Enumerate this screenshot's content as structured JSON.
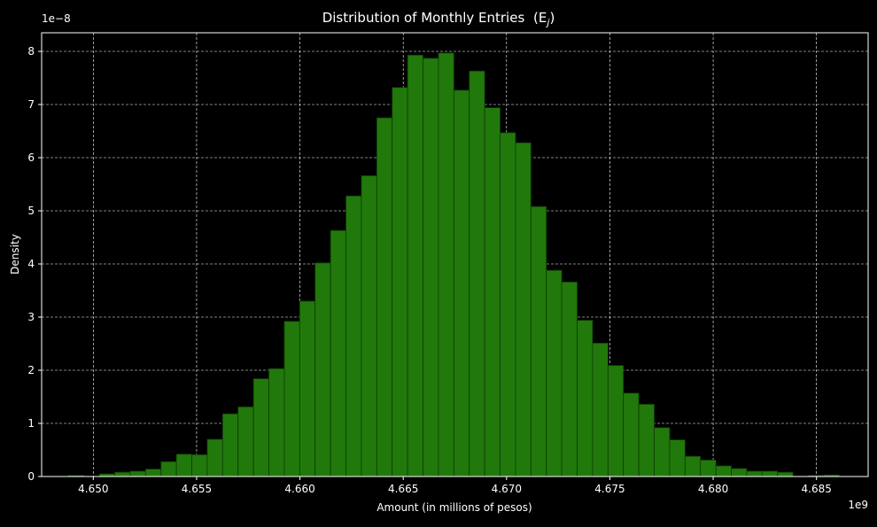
{
  "chart_data": {
    "type": "bar",
    "title": "Distribution of Monthly Entries",
    "title_math_part": "(E",
    "title_math_sub": "j",
    "title_math_close": ")",
    "xlabel": "Amount (in millions of pesos)",
    "ylabel": "Density",
    "x_offset_label": "1e9",
    "y_offset_label": "1e−8",
    "x_ticks": [
      "4.650",
      "4.655",
      "4.660",
      "4.665",
      "4.670",
      "4.675",
      "4.680",
      "4.685"
    ],
    "x_tick_values": [
      4.65,
      4.655,
      4.66,
      4.665,
      4.67,
      4.675,
      4.68,
      4.685
    ],
    "y_ticks": [
      "0",
      "1",
      "2",
      "3",
      "4",
      "5",
      "6",
      "7",
      "8"
    ],
    "y_tick_values": [
      0,
      1,
      2,
      3,
      4,
      5,
      6,
      7,
      8
    ],
    "xlim": [
      4.6475,
      4.6875
    ],
    "ylim": [
      0,
      8.35
    ],
    "grid": true,
    "bin_start": 4.6488,
    "bin_width": 0.000746,
    "densities": [
      0.02,
      0.0,
      0.05,
      0.08,
      0.1,
      0.14,
      0.28,
      0.42,
      0.41,
      0.7,
      1.18,
      1.31,
      1.84,
      2.03,
      2.92,
      3.3,
      4.02,
      4.63,
      5.28,
      5.66,
      6.75,
      7.32,
      7.93,
      7.87,
      7.97,
      7.27,
      7.63,
      6.94,
      6.47,
      6.28,
      5.08,
      3.88,
      3.66,
      2.94,
      2.51,
      2.09,
      1.57,
      1.36,
      0.92,
      0.69,
      0.38,
      0.31,
      0.2,
      0.15,
      0.1,
      0.1,
      0.08,
      0.0,
      0.02,
      0.03
    ],
    "colors": {
      "background": "#000000",
      "bar_fill": "#21790b",
      "bar_edge": "#0f3a06",
      "grid": "#ffffff",
      "text": "#ffffff"
    }
  }
}
